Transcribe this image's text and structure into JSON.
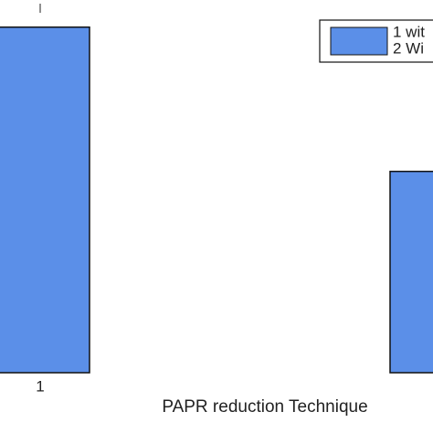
{
  "chart_data": {
    "type": "bar",
    "xlabel": "PAPR reduction Technique",
    "categories": [
      "1",
      null
    ],
    "values": [
      10.3,
      6.0
    ],
    "color": "#5b8fe8",
    "ylim": [
      0,
      11
    ],
    "legend": [
      "1 wit",
      "2 Wi"
    ]
  }
}
